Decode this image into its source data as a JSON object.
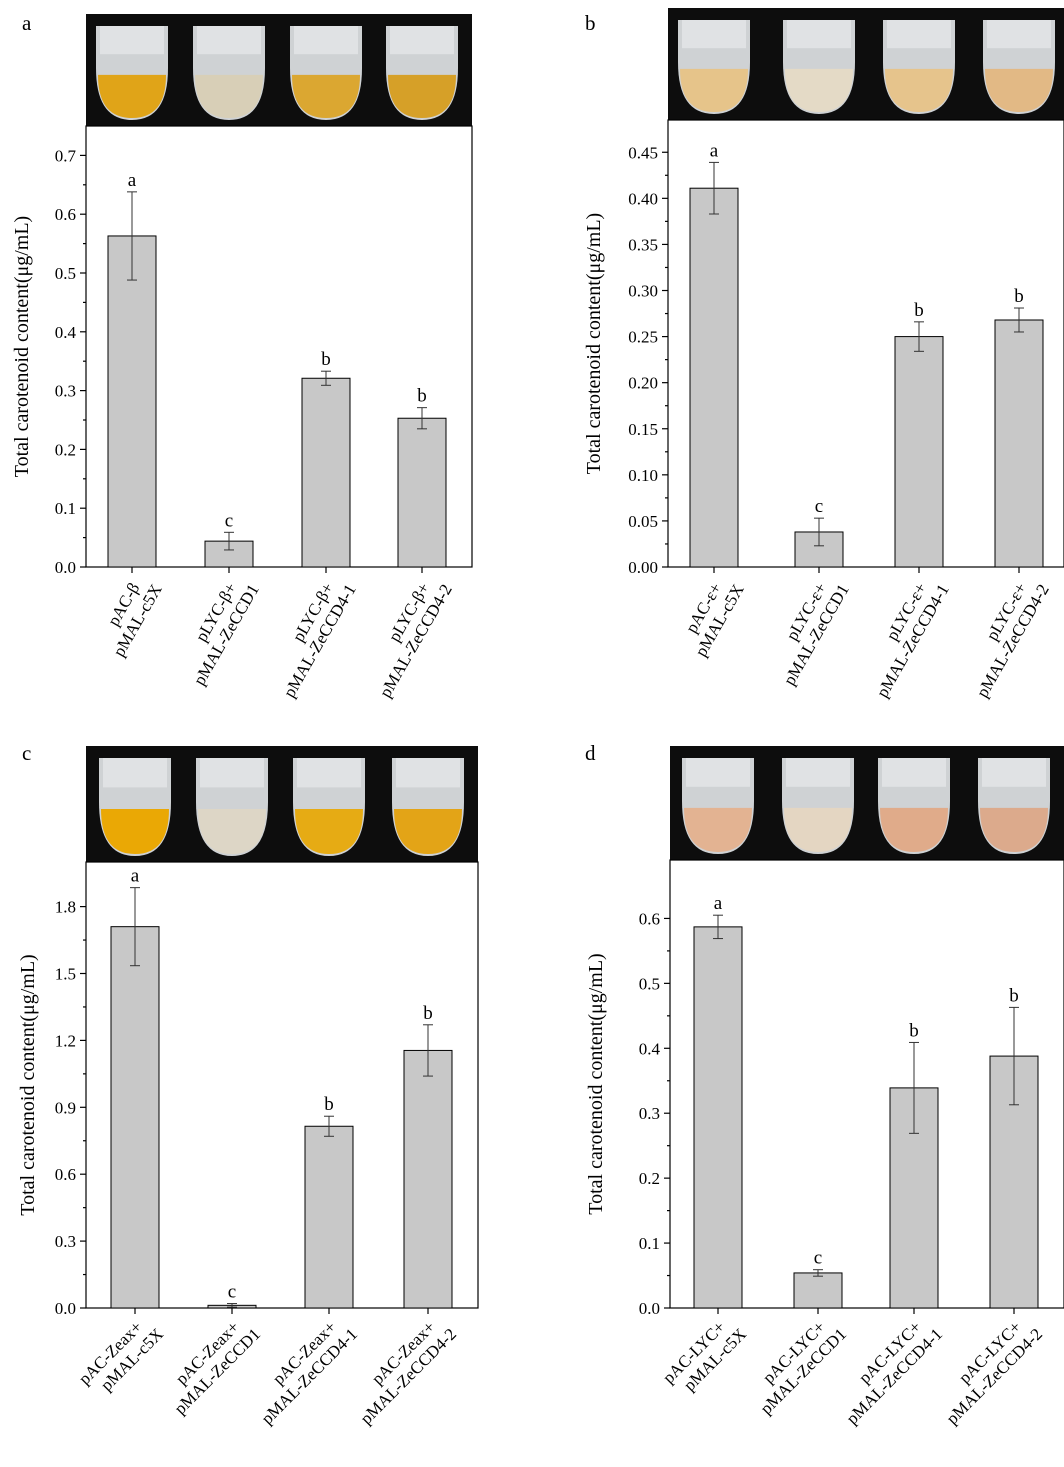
{
  "colors": {
    "bar": "#c8c8c8",
    "photo_background": "#0d0d0d"
  },
  "chart_data": [
    {
      "panel": "a",
      "type": "bar",
      "ylabel": "Total carotenoid content(μg/mL)",
      "ylim": [
        0,
        0.75
      ],
      "yticks": [
        "0.0",
        "0.1",
        "0.2",
        "0.3",
        "0.4",
        "0.5",
        "0.6",
        "0.7"
      ],
      "categories": [
        [
          "pAC-β",
          "pMAL-c5X"
        ],
        [
          "pLYC-β+",
          "pMAL-ZeCCD1"
        ],
        [
          "pLYC-β+",
          "pMAL-ZeCCD4-1"
        ],
        [
          "pLYC-β+",
          "pMAL-ZeCCD4-2"
        ]
      ],
      "values": [
        0.563,
        0.044,
        0.321,
        0.253
      ],
      "errors": [
        0.075,
        0.015,
        0.012,
        0.018
      ],
      "letters": [
        "a",
        "c",
        "b",
        "b"
      ],
      "tube_colors": [
        "#e0a418",
        "#d8cfb7",
        "#dba731",
        "#d6a028"
      ]
    },
    {
      "panel": "b",
      "type": "bar",
      "ylabel": "Total carotenoid content(μg/mL)",
      "ylim": [
        0,
        0.485
      ],
      "yticks": [
        "0.00",
        "0.05",
        "0.10",
        "0.15",
        "0.20",
        "0.25",
        "0.30",
        "0.35",
        "0.40",
        "0.45"
      ],
      "categories": [
        [
          "pAC-ε+",
          "pMAL-c5X"
        ],
        [
          "pLYC-ε+",
          "pMAL-ZeCCD1"
        ],
        [
          "pLYC-ε+",
          "pMAL-ZeCCD4-1"
        ],
        [
          "pLYC-ε+",
          "pMAL-ZeCCD4-2"
        ]
      ],
      "values": [
        0.411,
        0.038,
        0.25,
        0.268
      ],
      "errors": [
        0.028,
        0.015,
        0.016,
        0.013
      ],
      "letters": [
        "a",
        "c",
        "b",
        "b"
      ],
      "tube_colors": [
        "#e6c48a",
        "#e4dac6",
        "#e6c48c",
        "#e2b985"
      ]
    },
    {
      "panel": "c",
      "type": "bar",
      "ylabel": "Total carotenoid content(μg/mL)",
      "ylim": [
        0,
        2.0
      ],
      "yticks": [
        "0.0",
        "0.3",
        "0.6",
        "0.9",
        "1.2",
        "1.5",
        "1.8"
      ],
      "categories": [
        [
          "pAC-Zeax+",
          "pMAL-c5X"
        ],
        [
          "pAC-Zeax+",
          "pMAL-ZeCCD1"
        ],
        [
          "pAC-Zeax+",
          "pMAL-ZeCCD4-1"
        ],
        [
          "pAC-Zeax+",
          "pMAL-ZeCCD4-2"
        ]
      ],
      "values": [
        1.71,
        0.012,
        0.815,
        1.155
      ],
      "errors": [
        0.175,
        0.008,
        0.045,
        0.115
      ],
      "letters": [
        "a",
        "c",
        "b",
        "b"
      ],
      "tube_colors": [
        "#eaa805",
        "#ddd6c6",
        "#e6ab14",
        "#e3a417"
      ]
    },
    {
      "panel": "d",
      "type": "bar",
      "ylabel": "Total carotenoid content(μg/mL)",
      "ylim": [
        0,
        0.69
      ],
      "yticks": [
        "0.0",
        "0.1",
        "0.2",
        "0.3",
        "0.4",
        "0.5",
        "0.6"
      ],
      "categories": [
        [
          "pAC-LYC+",
          "pMAL-c5X"
        ],
        [
          "pAC-LYC+",
          "pMAL-ZeCCD1"
        ],
        [
          "pAC-LYC+",
          "pMAL-ZeCCD4-1"
        ],
        [
          "pAC-LYC+",
          "pMAL-ZeCCD4-2"
        ]
      ],
      "values": [
        0.587,
        0.054,
        0.339,
        0.388
      ],
      "errors": [
        0.018,
        0.005,
        0.07,
        0.075
      ],
      "letters": [
        "a",
        "c",
        "b",
        "b"
      ],
      "tube_colors": [
        "#e3b392",
        "#e4d6c2",
        "#e0ab8a",
        "#dcaa8c"
      ]
    }
  ]
}
